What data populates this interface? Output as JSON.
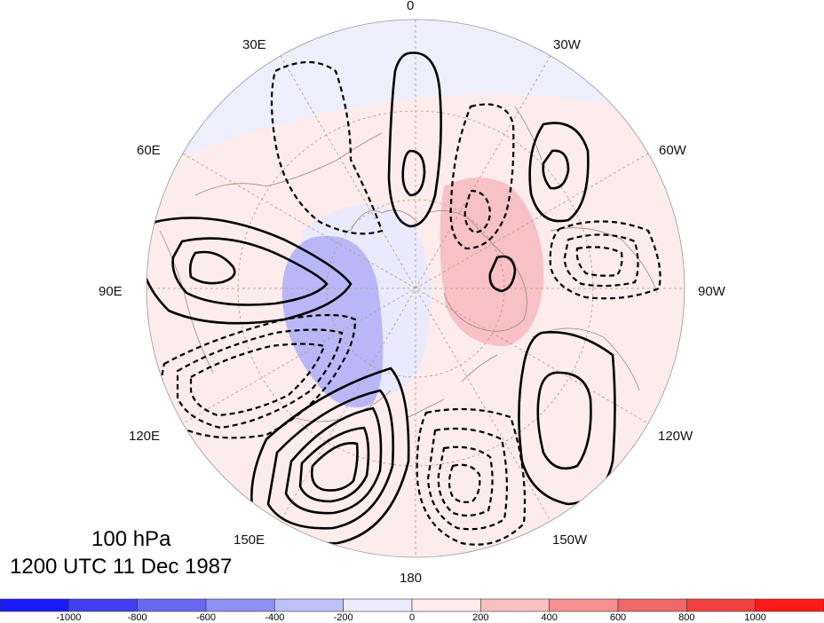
{
  "map": {
    "projection": "north-polar-stereographic",
    "longitude_labels": {
      "top": "0",
      "upper_left_1": "30E",
      "upper_right_1": "30W",
      "upper_left_2": "60E",
      "upper_right_2": "60W",
      "left": "90E",
      "right": "90W",
      "lower_left_2": "120E",
      "lower_right_2": "120W",
      "lower_left_1": "150E",
      "lower_right_1": "150W",
      "bottom": "180"
    },
    "title_line1": "100 hPa",
    "title_line2": "1200 UTC 11 Dec 1987",
    "contour_style": {
      "positive": "solid",
      "negative": "dashed",
      "color": "#000000"
    }
  },
  "colorbar": {
    "ticks": [
      "-1000",
      "-800",
      "-600",
      "-400",
      "-200",
      "0",
      "200",
      "400",
      "600",
      "800",
      "1000"
    ],
    "colors": [
      "#1a1aff",
      "#4040f0",
      "#6868f0",
      "#9090f4",
      "#c0c0f8",
      "#ececfc",
      "#fcecec",
      "#f8c0c0",
      "#f49090",
      "#f06868",
      "#f04040",
      "#ff1a1a"
    ]
  }
}
